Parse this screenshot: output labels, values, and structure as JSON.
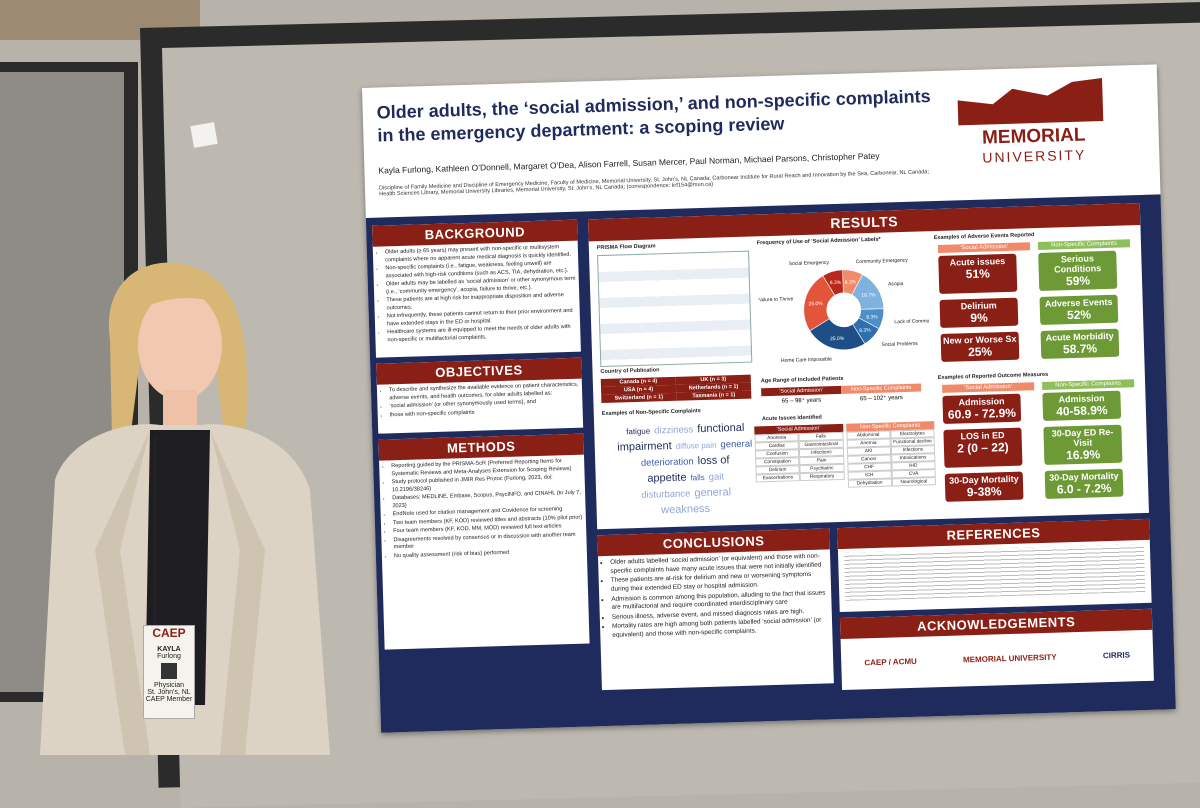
{
  "poster": {
    "title": "Older adults, the ‘social admission,’ and non-specific complaints in the emergency department: a scoping review",
    "authors": "Kayla Furlong, Kathleen O’Donnell, Margaret O’Dea, Alison Farrell, Susan Mercer, Paul Norman, Michael Parsons, Christopher Patey",
    "affiliations": "Discipline of Family Medicine and Discipline of Emergency Medicine, Faculty of Medicine, Memorial University, St. John’s, NL Canada; Carbonear Institute for Rural Reach and Innovation by the Sea, Carbonear, NL Canada; Health Sciences Library, Memorial University Libraries, Memorial University, St. John’s, NL Canada; (correspondence: krf154@mun.ca)",
    "logo": {
      "name": "MEMORIAL",
      "sub": "UNIVERSITY"
    },
    "background": {
      "heading": "BACKGROUND",
      "items": [
        "Older adults (≥ 65 years) may present with non-specific or multisystem complaints where no apparent acute medical diagnosis is quickly identified.",
        "Non-specific complaints (i.e., fatigue, weakness, feeling unwell) are associated with high-risk conditions (such as ACS, TIA, dehydration, etc.).",
        "Older adults may be labelled as ‘social admission’ or other synonymous term (i.e., ‘community emergency’, acopia, failure to thrive, etc.).",
        "These patients are at high risk for inappropriate disposition and adverse outcomes.",
        "Not infrequently, these patients cannot return to their prior environment and have extended stays in the ED or hospital.",
        "Healthcare systems are ill-equipped to meet the needs of older adults with non-specific or multifactorial complaints."
      ]
    },
    "objectives": {
      "heading": "OBJECTIVES",
      "items": [
        "To describe and synthesize the available evidence on patient characteristics, adverse events, and health outcomes, for older adults labelled as:",
        "‘social admission’ (or other synonymously used terms), and",
        "those with non-specific complaints"
      ]
    },
    "methods": {
      "heading": "METHODS",
      "items": [
        "Reporting guided by the PRISMA-ScR (Preferred Reporting Items for Systematic Reviews and Meta-Analyses Extension for Scoping Reviews)",
        "Study protocol published in JMIR Res Protoc (Furlong, 2023, doi: 10.2196/38246)",
        "Databases: MEDLINE, Embase, Scopus, PsycINFO, and CINAHL (to July 7, 2023)",
        "EndNote used for citation management and Covidence for screening",
        "Two team members (KF, KOD) reviewed titles and abstracts (10% pilot prior)",
        "Four team members (KF, KOD, MM, MOD) reviewed full text articles",
        "Disagreements resolved by consensus or in discussion with another team member",
        "No quality assessment (risk of bias) performed"
      ]
    },
    "results": {
      "heading": "RESULTS",
      "figure1": "PRISMA Flow Diagram",
      "figure4": {
        "title": "Frequency of Use of ‘Social Admission’ Labels*",
        "segments": [
          {
            "label": "Community Emergency",
            "value": 8.3,
            "value_label": "8.3%",
            "color": "#f08a6a"
          },
          {
            "label": "Acopia",
            "value": 16.7,
            "value_label": "16.7%",
            "color": "#7fb2de"
          },
          {
            "label": "Lack of Community Support",
            "value": 8.3,
            "value_label": "8.3%",
            "color": "#4d8fc9"
          },
          {
            "label": "Social Problems",
            "value": 8.3,
            "value_label": "8.3%",
            "color": "#2f6fae"
          },
          {
            "label": "Home Care Impossible",
            "value": 25.0,
            "value_label": "25.0%",
            "color": "#1d4f86"
          },
          {
            "label": "Failure to Thrive",
            "value": 25.0,
            "value_label": "25.0%",
            "color": "#e2553a"
          },
          {
            "label": "Social Emergency",
            "value": 8.3,
            "value_label": "8.3%",
            "color": "#b8281b"
          }
        ]
      },
      "figure2": {
        "title": "Country of Publication",
        "rows": [
          [
            "Canada (n = 4)",
            "UK (n = 3)"
          ],
          [
            "USA (n = 4)",
            "Netherlands (n = 1)"
          ],
          [
            "Switzerland (n = 1)",
            "Tasmania (n = 1)"
          ]
        ]
      },
      "figure3": {
        "title": "Examples of Non-Specific Complaints",
        "words": [
          "fatigue",
          "dizziness",
          "functional impairment",
          "diffuse pain",
          "general deterioration",
          "loss of appetite",
          "falls",
          "gait disturbance",
          "general weakness"
        ]
      },
      "table1": {
        "title": "Age Range of Included Patients",
        "header": [
          "‘Social Admission’",
          "Non-Specific Complaints"
        ],
        "row": [
          "65 – 98⁺ years",
          "65 – 102⁺ years"
        ]
      },
      "table2": {
        "title": "Acute Issues Identified",
        "header": [
          "‘Social Admission’",
          "Non-Specific Complaints"
        ],
        "left": [
          [
            "Anorexia",
            "Falls"
          ],
          [
            "Cardiac",
            "Gastrointestinal"
          ],
          [
            "Confusion",
            "Infections"
          ],
          [
            "Constipation",
            "Pain"
          ],
          [
            "Delirium",
            "Psychiatric"
          ],
          [
            "Exacerbations",
            "Respiratory"
          ]
        ],
        "right": [
          [
            "Abdominal",
            "Electrolytes"
          ],
          [
            "Anemia",
            "Functional decline"
          ],
          [
            "AKI",
            "Infections"
          ],
          [
            "Cancer",
            "Intoxications"
          ],
          [
            "CHF",
            "IHD"
          ],
          [
            "ICH",
            "CVA"
          ],
          [
            "Dehydration",
            "Neurological"
          ]
        ]
      },
      "figure5": {
        "title": "Examples of Adverse Events Reported",
        "header": [
          "‘Social Admission’",
          "Non-Specific Complaints"
        ],
        "left": [
          [
            "Acute issues",
            "51%"
          ],
          [
            "Delirium",
            "9%"
          ],
          [
            "New or Worse Sx",
            "25%"
          ]
        ],
        "right": [
          [
            "Serious Conditions",
            "59%"
          ],
          [
            "Adverse Events",
            "52%"
          ],
          [
            "Acute Morbidity",
            "58.7%"
          ]
        ]
      },
      "figure6": {
        "title": "Examples of Reported Outcome Measures",
        "header": [
          "‘Social Admission’",
          "Non-Specific Complaints"
        ],
        "left": [
          [
            "Admission",
            "60.9 - 72.9%"
          ],
          [
            "LOS in ED",
            "2 (0 – 22)"
          ],
          [
            "30-Day Mortality",
            "9-38%"
          ]
        ],
        "right": [
          [
            "Admission",
            "40-58.9%"
          ],
          [
            "30-Day ED Re-Visit",
            "16.9%"
          ],
          [
            "30-Day Mortality",
            "6.0 - 7.2%"
          ]
        ]
      }
    },
    "conclusions": {
      "heading": "CONCLUSIONS",
      "items": [
        "Older adults labelled ‘social admission’ (or equivalent) and those with non-specific complaints have many acute issues that were not initially identified",
        "These patients are at-risk for delirium and new or worsening symptoms during their extended ED stay or hospital admission.",
        "Admission is common among this population, alluding to the fact that issues are multifactorial and require coordinated interdisciplinary care",
        "Serious illness, adverse event, and missed diagnosis rates are high.",
        "Mortality rates are high among both patients labelled ‘social admission’ (or equivalent) and those with non-specific complaints."
      ]
    },
    "references": {
      "heading": "REFERENCES"
    },
    "acknowledgements": {
      "heading": "ACKNOWLEDGEMENTS",
      "logos": [
        "CAEP / ACMU",
        "MEMORIAL UNIVERSITY",
        "CIRRIS"
      ]
    }
  },
  "badge": {
    "org": "CAEP",
    "first": "KAYLA",
    "last": "Furlong",
    "role": "Physician",
    "place": "St. John's, NL",
    "member": "CAEP Member"
  }
}
